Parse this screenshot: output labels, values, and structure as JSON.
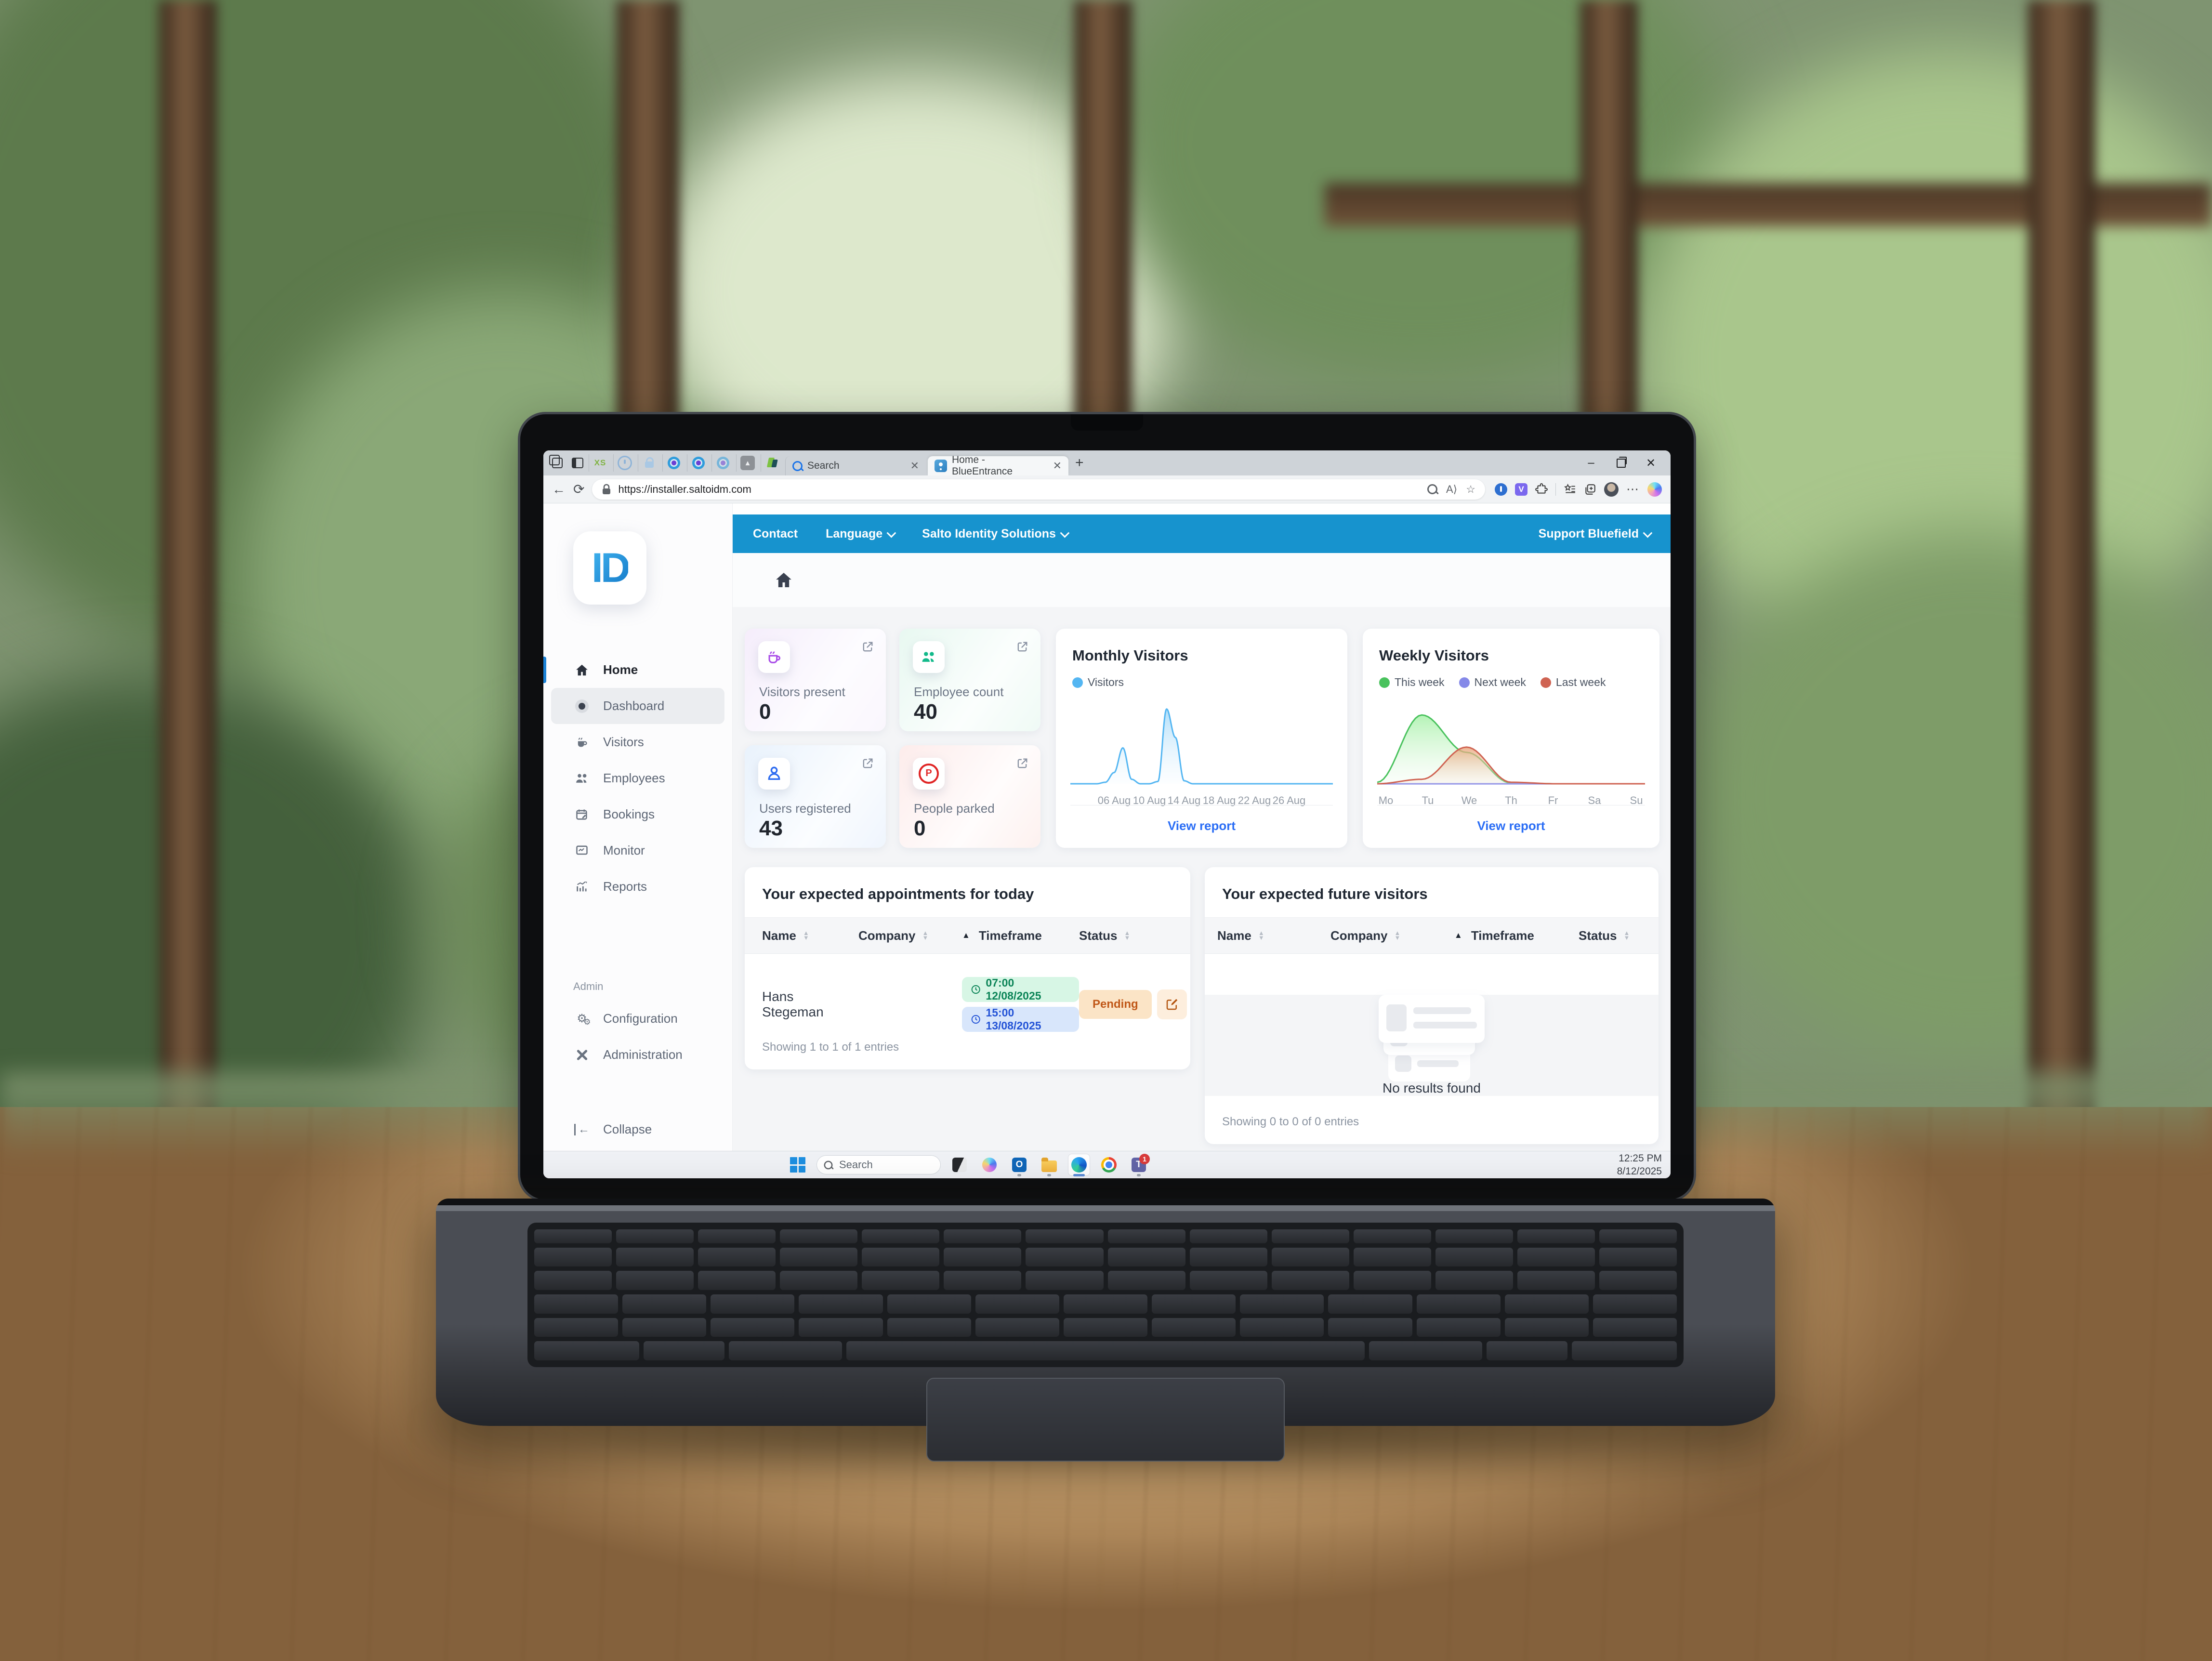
{
  "browser": {
    "tabs": [
      {
        "label": "Search"
      },
      {
        "label": "Home - BlueEntrance"
      }
    ],
    "url": "https://installer.saltoidm.com",
    "pinned_tabs": [
      "xs-logo",
      "onepassword",
      "lock",
      "camera",
      "camera",
      "camera",
      "triangle-logo",
      "leaf-logo"
    ]
  },
  "logo": {
    "text": "ID"
  },
  "nav": {
    "contact": "Contact",
    "language": "Language",
    "company": "Salto Identity Solutions",
    "support": "Support Bluefield"
  },
  "sidebar": {
    "items": [
      {
        "label": "Home"
      },
      {
        "label": "Dashboard"
      },
      {
        "label": "Visitors"
      },
      {
        "label": "Employees"
      },
      {
        "label": "Bookings"
      },
      {
        "label": "Monitor"
      },
      {
        "label": "Reports"
      }
    ],
    "admin_label": "Admin",
    "admin_items": [
      {
        "label": "Configuration"
      },
      {
        "label": "Administration"
      }
    ],
    "collapse": "Collapse"
  },
  "stats": [
    {
      "label": "Visitors present",
      "value": "0"
    },
    {
      "label": "Employee count",
      "value": "40"
    },
    {
      "label": "Users registered",
      "value": "43"
    },
    {
      "label": "People parked",
      "value": "0"
    }
  ],
  "panels": {
    "monthly": {
      "title": "Monthly Visitors",
      "link": "View report"
    },
    "weekly": {
      "title": "Weekly Visitors",
      "link": "View report"
    }
  },
  "appointments": {
    "title": "Your expected appointments for today",
    "columns": [
      "Name",
      "Company",
      "Timeframe",
      "Status"
    ],
    "row": {
      "name": "Hans Stegeman",
      "company": "",
      "time1": "07:00 12/08/2025",
      "time2": "15:00 13/08/2025",
      "status": "Pending"
    },
    "footer": "Showing 1 to 1 of 1 entries"
  },
  "future": {
    "title": "Your expected future visitors",
    "columns": [
      "Name",
      "Company",
      "Timeframe",
      "Status"
    ],
    "empty": "No results found",
    "footer": "Showing 0 to 0 of 0 entries"
  },
  "taskbar": {
    "search": "Search",
    "time": "12:25 PM",
    "date": "8/12/2025",
    "teams_badge": "1"
  },
  "colors": {
    "topnav": "#1793ce",
    "link": "#2a6df5",
    "badge_green_bg": "#d7f6e5",
    "badge_green_text": "#0b8457",
    "badge_blue_bg": "#d8e6fb",
    "badge_blue_text": "#2353d6",
    "pending_bg": "#fbe4c6",
    "pending_text": "#c05717"
  },
  "chart_data": [
    {
      "type": "area",
      "title": "Monthly Visitors",
      "x_unit": "day of August 2025",
      "y_note": "no y-axis shown; values on relative 0-10 scale",
      "y_max": 10.5,
      "x_ticks": [
        {
          "day": 6,
          "label": "06 Aug"
        },
        {
          "day": 10,
          "label": "10 Aug"
        },
        {
          "day": 14,
          "label": "14 Aug"
        },
        {
          "day": 18,
          "label": "18 Aug"
        },
        {
          "day": 22,
          "label": "22 Aug"
        },
        {
          "day": 26,
          "label": "26 Aug"
        }
      ],
      "series": [
        {
          "name": "Visitors",
          "color": "#54b6f2",
          "gradient": "gblue",
          "days": [
            0,
            0,
            0,
            0,
            0.2,
            1.5,
            4.8,
            0.6,
            0,
            0,
            0.3,
            10,
            6.2,
            0.4,
            0,
            0,
            0,
            0,
            0,
            0,
            0,
            0,
            0,
            0,
            0,
            0,
            0,
            0,
            0,
            0,
            0
          ]
        }
      ],
      "legend_position": "top"
    },
    {
      "type": "area",
      "title": "Weekly Visitors",
      "categories": [
        "Mo",
        "Tu",
        "We",
        "Th",
        "Fr",
        "Sa",
        "Su"
      ],
      "y_note": "no y-axis shown; values on relative 0-10 scale",
      "y_max": 10.5,
      "series": [
        {
          "name": "This week",
          "color": "#49c25d",
          "gradient": "ggreen",
          "values": [
            0.2,
            9.2,
            4.2,
            0.1,
            0,
            0,
            0
          ]
        },
        {
          "name": "Next week",
          "color": "#8589e8",
          "gradient": "",
          "values": [
            0,
            0,
            0,
            0,
            0,
            0,
            0
          ]
        },
        {
          "name": "Last week",
          "color": "#cf6352",
          "gradient": "gred",
          "values": [
            0,
            0.6,
            4.9,
            0.2,
            0,
            0,
            0
          ]
        }
      ],
      "legend_position": "top"
    }
  ]
}
